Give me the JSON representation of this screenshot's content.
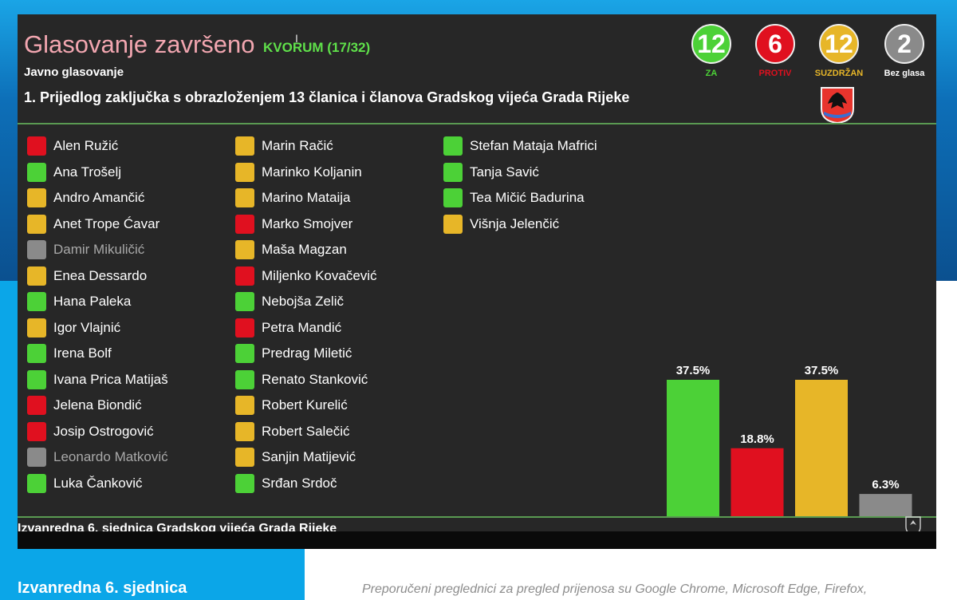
{
  "screen": {
    "title": "Glasovanje završeno",
    "quorum": "KVORUM (17/32)",
    "vote_type": "Javno glasovanje",
    "agenda_item": "1. Prijedlog zaključka s obrazloženjem 13 članica i članova Gradskog vijeća Grada Rijeke",
    "footer": "Izvanredna 6. sjednica Gradskog vijeća Grada Rijeke"
  },
  "counts": [
    {
      "value": "12",
      "label": "ZA",
      "color": "#4cd137"
    },
    {
      "value": "6",
      "label": "PROTIV",
      "color": "#e0101f"
    },
    {
      "value": "12",
      "label": "SUZDRŽAN",
      "color": "#e7b628"
    },
    {
      "value": "2",
      "label": "Bez glasa",
      "color": "#8a8a8a"
    }
  ],
  "status_colors": {
    "za": "#4cd137",
    "protiv": "#e0101f",
    "suzdrzan": "#e7b628",
    "bez_glasa": "#8a8a8a"
  },
  "members": [
    [
      {
        "name": "Alen Ružić",
        "vote": "protiv"
      },
      {
        "name": "Ana Trošelj",
        "vote": "za"
      },
      {
        "name": "Andro Amančić",
        "vote": "suzdrzan"
      },
      {
        "name": "Anet Trope Ćavar",
        "vote": "suzdrzan"
      },
      {
        "name": "Damir Mikuličić",
        "vote": "bez_glasa"
      },
      {
        "name": "Enea Dessardo",
        "vote": "suzdrzan"
      },
      {
        "name": "Hana Paleka",
        "vote": "za"
      },
      {
        "name": "Igor Vlajnić",
        "vote": "suzdrzan"
      },
      {
        "name": "Irena Bolf",
        "vote": "za"
      },
      {
        "name": "Ivana Prica Matijaš",
        "vote": "za"
      },
      {
        "name": "Jelena Biondić",
        "vote": "protiv"
      },
      {
        "name": "Josip Ostrogović",
        "vote": "protiv"
      },
      {
        "name": "Leonardo Matković",
        "vote": "bez_glasa"
      },
      {
        "name": "Luka Čanković",
        "vote": "za"
      }
    ],
    [
      {
        "name": "Marin Račić",
        "vote": "suzdrzan"
      },
      {
        "name": "Marinko Koljanin",
        "vote": "suzdrzan"
      },
      {
        "name": "Marino Mataija",
        "vote": "suzdrzan"
      },
      {
        "name": "Marko Smojver",
        "vote": "protiv"
      },
      {
        "name": "Maša Magzan",
        "vote": "suzdrzan"
      },
      {
        "name": "Miljenko Kovačević",
        "vote": "protiv"
      },
      {
        "name": "Nebojša Zelič",
        "vote": "za"
      },
      {
        "name": "Petra Mandić",
        "vote": "protiv"
      },
      {
        "name": "Predrag Miletić",
        "vote": "za"
      },
      {
        "name": "Renato Stanković",
        "vote": "za"
      },
      {
        "name": "Robert Kurelić",
        "vote": "suzdrzan"
      },
      {
        "name": "Robert Salečić",
        "vote": "suzdrzan"
      },
      {
        "name": "Sanjin Matijević",
        "vote": "suzdrzan"
      },
      {
        "name": "Srđan Srdoč",
        "vote": "za"
      }
    ],
    [
      {
        "name": "Stefan Mataja Mafrici",
        "vote": "za"
      },
      {
        "name": "Tanja Savić",
        "vote": "za"
      },
      {
        "name": "Tea Mičić Badurina",
        "vote": "za"
      },
      {
        "name": "Višnja Jelenčić",
        "vote": "suzdrzan"
      }
    ]
  ],
  "chart_data": {
    "type": "bar",
    "categories": [
      "ZA",
      "PROTIV",
      "SUZDRŽAN",
      "Bez glasa"
    ],
    "values": [
      37.5,
      18.8,
      37.5,
      6.3
    ],
    "labels": [
      "37.5%",
      "18.8%",
      "37.5%",
      "6.3%"
    ],
    "colors": [
      "#4cd137",
      "#e0101f",
      "#e7b628",
      "#8a8a8a"
    ],
    "ylim": [
      0,
      37.5
    ]
  },
  "page": {
    "bottom_title": "Izvanredna 6. sjednica",
    "bottom_note": "Preporučeni preglednici za pregled prijenosa su Google Chrome, Microsoft Edge, Firefox,"
  }
}
